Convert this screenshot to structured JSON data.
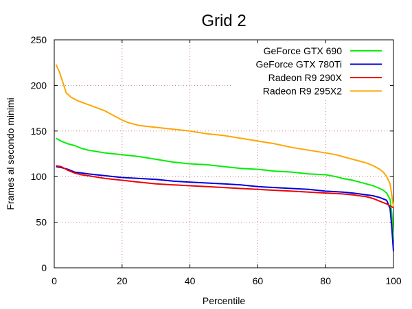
{
  "chart_data": {
    "type": "line",
    "title": "Grid 2",
    "xlabel": "Percentile",
    "ylabel": "Frames al secondo minimi",
    "xlim": [
      0,
      100
    ],
    "ylim": [
      0,
      250
    ],
    "xticks": [
      0,
      20,
      40,
      60,
      80,
      100
    ],
    "yticks": [
      0,
      50,
      100,
      150,
      200,
      250
    ],
    "grid": true,
    "legend_position": "top-right",
    "series": [
      {
        "name": "GeForce GTX 690",
        "color": "#00ee00",
        "points": [
          [
            0.5,
            142
          ],
          [
            2,
            139
          ],
          [
            4,
            136
          ],
          [
            6,
            134
          ],
          [
            8,
            131
          ],
          [
            10,
            129
          ],
          [
            15,
            126
          ],
          [
            20,
            124
          ],
          [
            25,
            122
          ],
          [
            30,
            119
          ],
          [
            35,
            116
          ],
          [
            40,
            114
          ],
          [
            45,
            113
          ],
          [
            50,
            111
          ],
          [
            55,
            109
          ],
          [
            60,
            108
          ],
          [
            65,
            106
          ],
          [
            70,
            105
          ],
          [
            75,
            103
          ],
          [
            80,
            102
          ],
          [
            83,
            100
          ],
          [
            85,
            98
          ],
          [
            88,
            96
          ],
          [
            90,
            94
          ],
          [
            92,
            92
          ],
          [
            94,
            90
          ],
          [
            96,
            87
          ],
          [
            97,
            85
          ],
          [
            98,
            82
          ],
          [
            99,
            75
          ],
          [
            99.5,
            60
          ],
          [
            100,
            30
          ]
        ]
      },
      {
        "name": "GeForce GTX 780Ti",
        "color": "#0000dd",
        "points": [
          [
            0.5,
            111
          ],
          [
            2,
            110
          ],
          [
            4,
            108
          ],
          [
            6,
            105
          ],
          [
            8,
            104
          ],
          [
            10,
            103
          ],
          [
            15,
            101
          ],
          [
            20,
            99
          ],
          [
            25,
            98
          ],
          [
            30,
            97
          ],
          [
            35,
            95
          ],
          [
            40,
            94
          ],
          [
            45,
            93
          ],
          [
            50,
            92
          ],
          [
            55,
            91
          ],
          [
            60,
            89
          ],
          [
            65,
            88
          ],
          [
            70,
            87
          ],
          [
            75,
            86
          ],
          [
            80,
            84
          ],
          [
            85,
            83
          ],
          [
            88,
            82
          ],
          [
            90,
            81
          ],
          [
            92,
            80
          ],
          [
            94,
            79
          ],
          [
            96,
            77
          ],
          [
            98,
            74
          ],
          [
            99,
            65
          ],
          [
            99.5,
            45
          ],
          [
            100,
            18
          ]
        ]
      },
      {
        "name": "Radeon R9 290X",
        "color": "#ee0000",
        "points": [
          [
            0.5,
            112
          ],
          [
            2,
            111
          ],
          [
            4,
            107
          ],
          [
            6,
            104
          ],
          [
            8,
            102
          ],
          [
            10,
            101
          ],
          [
            15,
            98
          ],
          [
            20,
            96
          ],
          [
            25,
            94
          ],
          [
            30,
            92
          ],
          [
            35,
            91
          ],
          [
            40,
            90
          ],
          [
            45,
            89
          ],
          [
            50,
            88
          ],
          [
            55,
            87
          ],
          [
            60,
            86
          ],
          [
            65,
            85
          ],
          [
            70,
            84
          ],
          [
            75,
            83
          ],
          [
            80,
            82
          ],
          [
            85,
            81
          ],
          [
            88,
            80
          ],
          [
            90,
            79
          ],
          [
            92,
            78
          ],
          [
            94,
            76
          ],
          [
            96,
            73
          ],
          [
            98,
            70
          ],
          [
            99,
            68
          ],
          [
            100,
            66
          ]
        ]
      },
      {
        "name": "Radeon R9 295X2",
        "color": "#ffa500",
        "points": [
          [
            0.5,
            223
          ],
          [
            1.5,
            215
          ],
          [
            2.5,
            204
          ],
          [
            3.5,
            192
          ],
          [
            5,
            187
          ],
          [
            7,
            183
          ],
          [
            10,
            179
          ],
          [
            15,
            172
          ],
          [
            18,
            166
          ],
          [
            20,
            162
          ],
          [
            22,
            159
          ],
          [
            25,
            156
          ],
          [
            30,
            154
          ],
          [
            35,
            152
          ],
          [
            40,
            150
          ],
          [
            45,
            147
          ],
          [
            50,
            145
          ],
          [
            55,
            142
          ],
          [
            60,
            139
          ],
          [
            65,
            136
          ],
          [
            70,
            132
          ],
          [
            75,
            129
          ],
          [
            80,
            126
          ],
          [
            83,
            124
          ],
          [
            85,
            122
          ],
          [
            88,
            119
          ],
          [
            90,
            117
          ],
          [
            92,
            115
          ],
          [
            94,
            112
          ],
          [
            96,
            108
          ],
          [
            97,
            105
          ],
          [
            98,
            100
          ],
          [
            99,
            92
          ],
          [
            99.5,
            80
          ],
          [
            100,
            67
          ]
        ]
      }
    ]
  }
}
